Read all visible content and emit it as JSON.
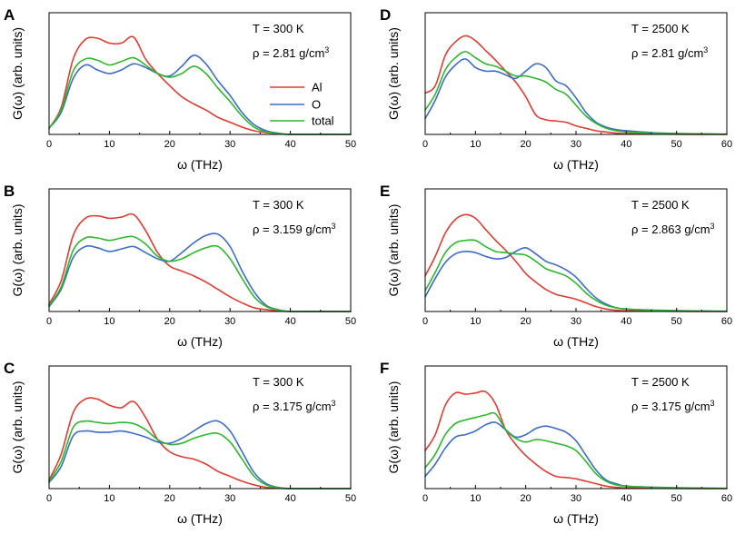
{
  "chart_data": [
    {
      "panel": "A",
      "type": "line",
      "xlabel": "ω (THz)",
      "ylabel": "G(ω) (arb. units)",
      "xlim": [
        0,
        50
      ],
      "xticks": [
        0,
        10,
        20,
        30,
        40,
        50
      ],
      "ylim": [
        0,
        1
      ],
      "annotations": {
        "temperature": "T = 300 K",
        "density_prefix": "ρ = 2.81 g/cm",
        "density_sup": "3"
      },
      "legend": [
        "Al",
        "O",
        "total"
      ],
      "series": [
        {
          "name": "Al",
          "color": "#e03c31",
          "x": [
            0,
            2,
            4,
            6,
            8,
            10,
            12,
            14,
            16,
            18,
            20,
            22,
            24,
            26,
            28,
            30,
            32,
            34,
            36,
            38,
            40,
            45,
            50
          ],
          "y": [
            0.05,
            0.22,
            0.62,
            0.78,
            0.79,
            0.75,
            0.75,
            0.8,
            0.62,
            0.5,
            0.4,
            0.31,
            0.25,
            0.2,
            0.14,
            0.1,
            0.06,
            0.03,
            0.015,
            0.005,
            0,
            0,
            0
          ]
        },
        {
          "name": "O",
          "color": "#3c6cc8",
          "x": [
            0,
            2,
            4,
            6,
            8,
            10,
            12,
            14,
            16,
            18,
            20,
            22,
            24,
            26,
            28,
            30,
            32,
            34,
            36,
            38,
            40,
            45,
            50
          ],
          "y": [
            0.05,
            0.18,
            0.46,
            0.57,
            0.53,
            0.5,
            0.53,
            0.58,
            0.55,
            0.5,
            0.48,
            0.56,
            0.65,
            0.58,
            0.44,
            0.32,
            0.18,
            0.08,
            0.03,
            0.01,
            0,
            0,
            0
          ]
        },
        {
          "name": "total",
          "color": "#2db82d",
          "x": [
            0,
            2,
            4,
            6,
            8,
            10,
            12,
            14,
            16,
            18,
            20,
            22,
            24,
            26,
            28,
            30,
            32,
            34,
            36,
            38,
            40,
            45,
            50
          ],
          "y": [
            0.05,
            0.2,
            0.52,
            0.62,
            0.61,
            0.57,
            0.6,
            0.63,
            0.57,
            0.5,
            0.47,
            0.5,
            0.56,
            0.5,
            0.38,
            0.27,
            0.15,
            0.06,
            0.02,
            0.008,
            0,
            0,
            0
          ]
        }
      ]
    },
    {
      "panel": "B",
      "type": "line",
      "xlabel": "ω (THz)",
      "ylabel": "G(ω) (arb. units)",
      "xlim": [
        0,
        50
      ],
      "xticks": [
        0,
        10,
        20,
        30,
        40,
        50
      ],
      "ylim": [
        0,
        1
      ],
      "annotations": {
        "temperature": "T = 300 K",
        "density_prefix": "ρ = 3.159 g/cm",
        "density_sup": "3"
      },
      "series": [
        {
          "name": "Al",
          "color": "#e03c31",
          "x": [
            0,
            2,
            4,
            6,
            8,
            10,
            12,
            14,
            16,
            18,
            20,
            22,
            24,
            26,
            28,
            30,
            32,
            34,
            36,
            38,
            40,
            45,
            50
          ],
          "y": [
            0.06,
            0.25,
            0.62,
            0.76,
            0.78,
            0.76,
            0.77,
            0.79,
            0.66,
            0.48,
            0.37,
            0.33,
            0.29,
            0.24,
            0.18,
            0.12,
            0.07,
            0.03,
            0.015,
            0.005,
            0,
            0,
            0
          ]
        },
        {
          "name": "O",
          "color": "#3c6cc8",
          "x": [
            0,
            2,
            4,
            6,
            8,
            10,
            12,
            14,
            16,
            18,
            20,
            22,
            24,
            26,
            28,
            30,
            32,
            34,
            36,
            38,
            40,
            45,
            50
          ],
          "y": [
            0.04,
            0.18,
            0.44,
            0.53,
            0.52,
            0.49,
            0.51,
            0.53,
            0.48,
            0.43,
            0.41,
            0.48,
            0.56,
            0.62,
            0.63,
            0.53,
            0.33,
            0.16,
            0.05,
            0.015,
            0,
            0,
            0
          ]
        },
        {
          "name": "total",
          "color": "#2db82d",
          "x": [
            0,
            2,
            4,
            6,
            8,
            10,
            12,
            14,
            16,
            18,
            20,
            22,
            24,
            26,
            28,
            30,
            32,
            34,
            36,
            38,
            40,
            45,
            50
          ],
          "y": [
            0.05,
            0.2,
            0.5,
            0.6,
            0.6,
            0.58,
            0.6,
            0.61,
            0.55,
            0.45,
            0.41,
            0.43,
            0.48,
            0.52,
            0.53,
            0.43,
            0.27,
            0.12,
            0.04,
            0.012,
            0,
            0,
            0
          ]
        }
      ]
    },
    {
      "panel": "C",
      "type": "line",
      "xlabel": "ω (THz)",
      "ylabel": "G(ω) (arb. units)",
      "xlim": [
        0,
        50
      ],
      "xticks": [
        0,
        10,
        20,
        30,
        40,
        50
      ],
      "ylim": [
        0,
        1
      ],
      "annotations": {
        "temperature": "T = 300 K",
        "density_prefix": "ρ = 3.175 g/cm",
        "density_sup": "3"
      },
      "series": [
        {
          "name": "Al",
          "color": "#e03c31",
          "x": [
            0,
            2,
            4,
            6,
            8,
            10,
            12,
            14,
            16,
            18,
            20,
            22,
            24,
            26,
            28,
            30,
            32,
            34,
            36,
            38,
            40,
            45,
            50
          ],
          "y": [
            0.07,
            0.28,
            0.62,
            0.73,
            0.73,
            0.68,
            0.66,
            0.71,
            0.58,
            0.4,
            0.3,
            0.26,
            0.24,
            0.2,
            0.14,
            0.1,
            0.06,
            0.03,
            0.01,
            0.004,
            0,
            0,
            0
          ]
        },
        {
          "name": "O",
          "color": "#3c6cc8",
          "x": [
            0,
            2,
            4,
            6,
            8,
            10,
            12,
            14,
            16,
            18,
            20,
            22,
            24,
            26,
            28,
            30,
            32,
            34,
            36,
            38,
            40,
            45,
            50
          ],
          "y": [
            0.05,
            0.18,
            0.43,
            0.47,
            0.46,
            0.46,
            0.47,
            0.45,
            0.42,
            0.38,
            0.37,
            0.41,
            0.47,
            0.53,
            0.55,
            0.47,
            0.3,
            0.13,
            0.04,
            0.01,
            0,
            0,
            0
          ]
        },
        {
          "name": "total",
          "color": "#2db82d",
          "x": [
            0,
            2,
            4,
            6,
            8,
            10,
            12,
            14,
            16,
            18,
            20,
            22,
            24,
            26,
            28,
            30,
            32,
            34,
            36,
            38,
            40,
            45,
            50
          ],
          "y": [
            0.06,
            0.22,
            0.5,
            0.55,
            0.54,
            0.53,
            0.54,
            0.53,
            0.48,
            0.4,
            0.36,
            0.37,
            0.41,
            0.44,
            0.45,
            0.38,
            0.24,
            0.1,
            0.03,
            0.008,
            0,
            0,
            0
          ]
        }
      ]
    },
    {
      "panel": "D",
      "type": "line",
      "xlabel": "ω (THz)",
      "ylabel": "G(ω) (arb. units)",
      "xlim": [
        0,
        60
      ],
      "xticks": [
        0,
        10,
        20,
        30,
        40,
        50,
        60
      ],
      "ylim": [
        0,
        1
      ],
      "annotations": {
        "temperature": "T = 2500 K",
        "density_prefix": "ρ = 2.81 g/cm",
        "density_sup": "3"
      },
      "series": [
        {
          "name": "Al",
          "color": "#e03c31",
          "x": [
            0,
            2,
            4,
            6,
            8,
            10,
            12,
            14,
            16,
            18,
            20,
            22,
            24,
            26,
            28,
            30,
            32,
            34,
            36,
            38,
            40,
            45,
            50,
            55,
            60
          ],
          "y": [
            0.34,
            0.4,
            0.65,
            0.76,
            0.81,
            0.77,
            0.69,
            0.61,
            0.52,
            0.43,
            0.31,
            0.16,
            0.12,
            0.11,
            0.1,
            0.07,
            0.05,
            0.03,
            0.02,
            0.01,
            0.006,
            0.003,
            0.001,
            0,
            0
          ]
        },
        {
          "name": "O",
          "color": "#3c6cc8",
          "x": [
            0,
            2,
            4,
            6,
            8,
            10,
            12,
            14,
            16,
            18,
            20,
            22,
            24,
            26,
            28,
            30,
            32,
            34,
            36,
            38,
            40,
            45,
            50,
            55,
            60
          ],
          "y": [
            0.13,
            0.28,
            0.47,
            0.57,
            0.62,
            0.55,
            0.52,
            0.52,
            0.49,
            0.46,
            0.52,
            0.58,
            0.55,
            0.44,
            0.4,
            0.3,
            0.18,
            0.1,
            0.06,
            0.04,
            0.03,
            0.015,
            0.008,
            0.004,
            0.002
          ]
        },
        {
          "name": "total",
          "color": "#2db82d",
          "x": [
            0,
            2,
            4,
            6,
            8,
            10,
            12,
            14,
            16,
            18,
            20,
            22,
            24,
            26,
            28,
            30,
            32,
            34,
            36,
            38,
            40,
            45,
            50,
            55,
            60
          ],
          "y": [
            0.2,
            0.33,
            0.53,
            0.63,
            0.68,
            0.63,
            0.58,
            0.56,
            0.52,
            0.48,
            0.48,
            0.46,
            0.43,
            0.37,
            0.33,
            0.24,
            0.15,
            0.09,
            0.05,
            0.03,
            0.02,
            0.01,
            0.006,
            0.003,
            0.001
          ]
        }
      ]
    },
    {
      "panel": "E",
      "type": "line",
      "xlabel": "ω (THz)",
      "ylabel": "G(ω) (arb. units)",
      "xlim": [
        0,
        60
      ],
      "xticks": [
        0,
        10,
        20,
        30,
        40,
        50,
        60
      ],
      "ylim": [
        0,
        1
      ],
      "annotations": {
        "temperature": "T = 2500 K",
        "density_prefix": "ρ = 2.863 g/cm",
        "density_sup": "3"
      },
      "series": [
        {
          "name": "Al",
          "color": "#e03c31",
          "x": [
            0,
            2,
            4,
            6,
            8,
            10,
            12,
            14,
            16,
            18,
            20,
            22,
            24,
            26,
            28,
            30,
            32,
            34,
            36,
            38,
            40,
            45,
            50,
            55,
            60
          ],
          "y": [
            0.29,
            0.45,
            0.64,
            0.75,
            0.79,
            0.76,
            0.67,
            0.58,
            0.5,
            0.41,
            0.31,
            0.24,
            0.18,
            0.14,
            0.12,
            0.1,
            0.07,
            0.04,
            0.02,
            0.01,
            0.006,
            0.003,
            0.001,
            0,
            0
          ]
        },
        {
          "name": "O",
          "color": "#3c6cc8",
          "x": [
            0,
            2,
            4,
            6,
            8,
            10,
            12,
            14,
            16,
            18,
            20,
            22,
            24,
            26,
            28,
            30,
            32,
            34,
            36,
            38,
            40,
            45,
            50,
            55,
            60
          ],
          "y": [
            0.12,
            0.27,
            0.4,
            0.47,
            0.49,
            0.48,
            0.45,
            0.43,
            0.44,
            0.49,
            0.52,
            0.47,
            0.41,
            0.38,
            0.34,
            0.28,
            0.19,
            0.11,
            0.06,
            0.03,
            0.02,
            0.012,
            0.007,
            0.004,
            0.002
          ]
        },
        {
          "name": "total",
          "color": "#2db82d",
          "x": [
            0,
            2,
            4,
            6,
            8,
            10,
            12,
            14,
            16,
            18,
            20,
            22,
            24,
            26,
            28,
            30,
            32,
            34,
            36,
            38,
            40,
            45,
            50,
            55,
            60
          ],
          "y": [
            0.17,
            0.32,
            0.48,
            0.56,
            0.58,
            0.58,
            0.53,
            0.49,
            0.48,
            0.47,
            0.46,
            0.41,
            0.35,
            0.32,
            0.29,
            0.23,
            0.15,
            0.09,
            0.05,
            0.03,
            0.02,
            0.01,
            0.006,
            0.003,
            0.001
          ]
        }
      ]
    },
    {
      "panel": "F",
      "type": "line",
      "xlabel": "ω (THz)",
      "ylabel": "G(ω) (arb. units)",
      "xlim": [
        0,
        60
      ],
      "xticks": [
        0,
        10,
        20,
        30,
        40,
        50,
        60
      ],
      "ylim": [
        0,
        1
      ],
      "annotations": {
        "temperature": "T = 2500 K",
        "density_prefix": "ρ = 3.175 g/cm",
        "density_sup": "3"
      },
      "series": [
        {
          "name": "Al",
          "color": "#e03c31",
          "x": [
            0,
            2,
            4,
            6,
            8,
            10,
            12,
            14,
            16,
            18,
            20,
            22,
            24,
            26,
            28,
            30,
            32,
            34,
            36,
            38,
            40,
            45,
            50,
            55,
            60
          ],
          "y": [
            0.31,
            0.44,
            0.68,
            0.78,
            0.77,
            0.78,
            0.79,
            0.69,
            0.48,
            0.36,
            0.27,
            0.2,
            0.14,
            0.1,
            0.09,
            0.08,
            0.06,
            0.04,
            0.02,
            0.01,
            0.006,
            0.003,
            0.001,
            0,
            0
          ]
        },
        {
          "name": "O",
          "color": "#3c6cc8",
          "x": [
            0,
            2,
            4,
            6,
            8,
            10,
            12,
            14,
            16,
            18,
            20,
            22,
            24,
            26,
            28,
            30,
            32,
            34,
            36,
            38,
            40,
            45,
            50,
            55,
            60
          ],
          "y": [
            0.1,
            0.2,
            0.33,
            0.42,
            0.44,
            0.47,
            0.52,
            0.54,
            0.48,
            0.42,
            0.44,
            0.49,
            0.51,
            0.49,
            0.46,
            0.39,
            0.27,
            0.15,
            0.07,
            0.04,
            0.02,
            0.012,
            0.007,
            0.004,
            0.002
          ]
        },
        {
          "name": "total",
          "color": "#2db82d",
          "x": [
            0,
            2,
            4,
            6,
            8,
            10,
            12,
            14,
            16,
            18,
            20,
            22,
            24,
            26,
            28,
            30,
            32,
            34,
            36,
            38,
            40,
            45,
            50,
            55,
            60
          ],
          "y": [
            0.17,
            0.28,
            0.44,
            0.53,
            0.56,
            0.58,
            0.6,
            0.61,
            0.48,
            0.41,
            0.38,
            0.4,
            0.39,
            0.37,
            0.35,
            0.31,
            0.22,
            0.12,
            0.06,
            0.03,
            0.02,
            0.01,
            0.006,
            0.003,
            0.001
          ]
        }
      ]
    }
  ]
}
